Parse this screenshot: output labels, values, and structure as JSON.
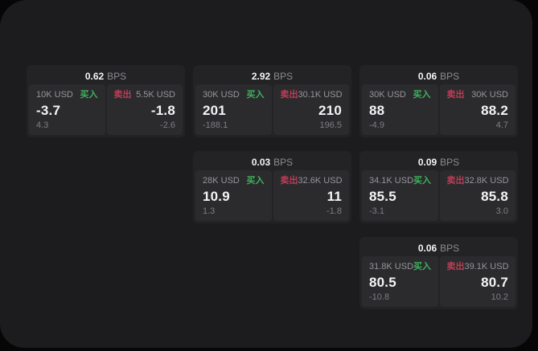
{
  "labels": {
    "bps_unit": "BPS",
    "buy": "买入",
    "sell": "卖出"
  },
  "colors": {
    "backdrop": "#060606",
    "window_bg": "#1c1c1e",
    "card_bg": "#232325",
    "panel_bg": "#2b2b2e",
    "buy_green": "#3eb15c",
    "sell_red": "#c03c55",
    "text_primary": "#f4f4f6",
    "text_secondary": "#96969b",
    "text_dim": "#7e7e83"
  },
  "cards": [
    {
      "spread": "0.62",
      "buy": {
        "amount": "10K USD",
        "price": "-3.7",
        "sub": "4.3"
      },
      "sell": {
        "amount": "5.5K USD",
        "price": "-1.8",
        "sub": "-2.6"
      }
    },
    {
      "spread": "2.92",
      "buy": {
        "amount": "30K USD",
        "price": "201",
        "sub": "-188.1"
      },
      "sell": {
        "amount": "30.1K USD",
        "price": "210",
        "sub": "196.5"
      }
    },
    {
      "spread": "0.06",
      "buy": {
        "amount": "30K USD",
        "price": "88",
        "sub": "-4.9"
      },
      "sell": {
        "amount": "30K USD",
        "price": "88.2",
        "sub": "4.7"
      }
    },
    {
      "spread": "0.03",
      "buy": {
        "amount": "28K USD",
        "price": "10.9",
        "sub": "1.3"
      },
      "sell": {
        "amount": "32.6K USD",
        "price": "11",
        "sub": "-1.8"
      }
    },
    {
      "spread": "0.09",
      "buy": {
        "amount": "34.1K USD",
        "price": "85.5",
        "sub": "-3.1"
      },
      "sell": {
        "amount": "32.8K USD",
        "price": "85.8",
        "sub": "3.0"
      }
    },
    {
      "spread": "0.06",
      "buy": {
        "amount": "31.8K USD",
        "price": "80.5",
        "sub": "-10.8"
      },
      "sell": {
        "amount": "39.1K USD",
        "price": "80.7",
        "sub": "10.2"
      }
    }
  ]
}
